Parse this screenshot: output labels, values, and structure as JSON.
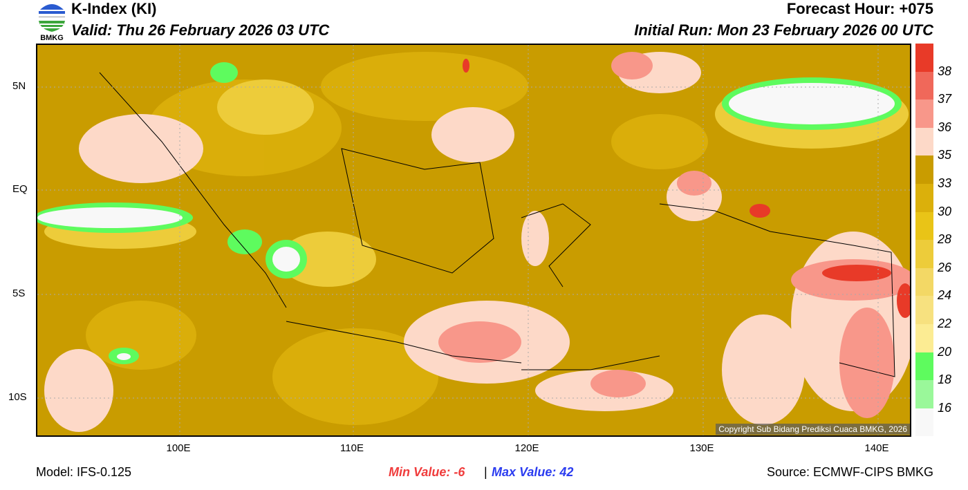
{
  "header": {
    "title": "K-Index (KI)",
    "valid": "Valid: Thu 26 February 2026 03 UTC",
    "forecast_hour": "Forecast Hour: +075",
    "initial_run": "Initial Run: Mon 23 February 2026 00 UTC",
    "logo_text": "BMKG"
  },
  "map": {
    "lat_labels": [
      "5N",
      "EQ",
      "5S",
      "10S"
    ],
    "lon_labels": [
      "100E",
      "110E",
      "120E",
      "130E",
      "140E"
    ],
    "copyright": "Copyright Sub Bidang Prediksi Cuaca BMKG, 2026"
  },
  "colorbar": {
    "labels": [
      "38",
      "37",
      "36",
      "35",
      "33",
      "30",
      "28",
      "26",
      "24",
      "22",
      "20",
      "18",
      "16"
    ],
    "colors": [
      "#e83a28",
      "#f0685a",
      "#f8978a",
      "#fdd9c8",
      "#c99c00",
      "#dbb00b",
      "#e9c417",
      "#edcc3a",
      "#f3d865",
      "#f7e17f",
      "#fcec93",
      "#5efb5e",
      "#9af89a",
      "#f8f8f8"
    ]
  },
  "footer": {
    "model": "Model: IFS-0.125",
    "min_label": "Min Value:  -6",
    "separator": "|",
    "max_label": "Max Value:  42",
    "source": "Source: ECMWF-CIPS BMKG"
  }
}
